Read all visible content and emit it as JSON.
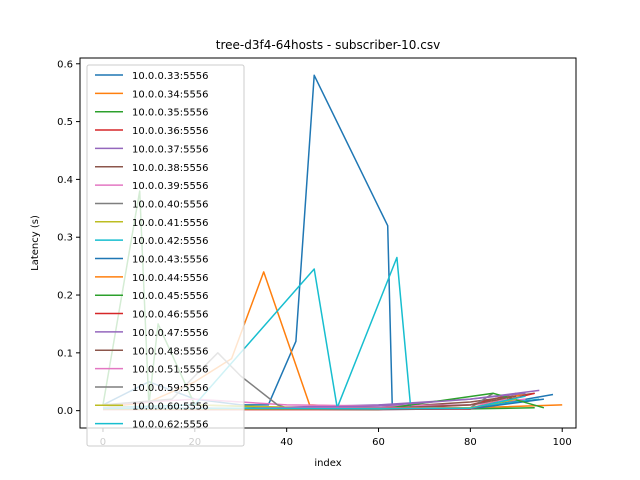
{
  "chart_data": {
    "type": "line",
    "title": "tree-d3f4-64hosts - subscriber-10.csv",
    "xlabel": "index",
    "ylabel": "Latency (s)",
    "xlim": [
      -5,
      103
    ],
    "ylim": [
      -0.03,
      0.61
    ],
    "xticks": [
      0,
      20,
      40,
      60,
      80,
      100
    ],
    "yticks": [
      0.0,
      0.1,
      0.2,
      0.3,
      0.4,
      0.5,
      0.6
    ],
    "xtick_labels": [
      "0",
      "20",
      "40",
      "60",
      "80",
      "100"
    ],
    "ytick_labels": [
      "0.0",
      "0.1",
      "0.2",
      "0.3",
      "0.4",
      "0.5",
      "0.6"
    ],
    "legend_position": "upper-left",
    "series": [
      {
        "name": "10.0.0.33:5556",
        "color": "#1f77b4",
        "x": [
          0,
          10,
          20,
          30,
          36,
          42,
          46,
          62,
          63,
          80,
          98
        ],
        "y": [
          0.01,
          0.05,
          0.02,
          0.01,
          0.01,
          0.12,
          0.58,
          0.32,
          0.005,
          0.003,
          0.028
        ]
      },
      {
        "name": "10.0.0.34:5556",
        "color": "#ff7f0e",
        "x": [
          0,
          5,
          10,
          20,
          28,
          35,
          45,
          60,
          80,
          100
        ],
        "y": [
          0.005,
          0.01,
          0.015,
          0.05,
          0.09,
          0.24,
          0.01,
          0.005,
          0.005,
          0.01
        ]
      },
      {
        "name": "10.0.0.35:5556",
        "color": "#2ca02c",
        "x": [
          0,
          8,
          10,
          12,
          20,
          40,
          80,
          94
        ],
        "y": [
          0.01,
          0.38,
          0.01,
          0.15,
          0.01,
          0.005,
          0.003,
          0.005
        ]
      },
      {
        "name": "10.0.0.36:5556",
        "color": "#d62728",
        "x": [
          0,
          20,
          40,
          60,
          80,
          90
        ],
        "y": [
          0.003,
          0.002,
          0.002,
          0.002,
          0.01,
          0.03
        ]
      },
      {
        "name": "10.0.0.37:5556",
        "color": "#9467bd",
        "x": [
          0,
          30,
          60,
          80,
          95
        ],
        "y": [
          0.004,
          0.004,
          0.01,
          0.02,
          0.035
        ]
      },
      {
        "name": "10.0.0.38:5556",
        "color": "#8c564b",
        "x": [
          0,
          30,
          60,
          80,
          94
        ],
        "y": [
          0.005,
          0.004,
          0.005,
          0.015,
          0.03
        ]
      },
      {
        "name": "10.0.0.39:5556",
        "color": "#e377c2",
        "x": [
          0,
          20,
          40,
          60,
          80,
          92
        ],
        "y": [
          0.01,
          0.02,
          0.01,
          0.008,
          0.01,
          0.02
        ]
      },
      {
        "name": "10.0.0.40:5556",
        "color": "#7f7f7f",
        "x": [
          0,
          15,
          25,
          30,
          38,
          40,
          80,
          85
        ],
        "y": [
          0.01,
          0.02,
          0.1,
          0.06,
          0.01,
          0.005,
          0.005,
          0.03
        ]
      },
      {
        "name": "10.0.0.41:5556",
        "color": "#bcbd22",
        "x": [
          0,
          20,
          50,
          80,
          90
        ],
        "y": [
          0.006,
          0.01,
          0.004,
          0.004,
          0.02
        ]
      },
      {
        "name": "10.0.0.42:5556",
        "color": "#17becf",
        "x": [
          0,
          20,
          46,
          51,
          64,
          67,
          80,
          95
        ],
        "y": [
          0.005,
          0.01,
          0.245,
          0.005,
          0.265,
          0.005,
          0.005,
          0.02
        ]
      },
      {
        "name": "10.0.0.43:5556",
        "color": "#1f77b4",
        "x": [
          0,
          30,
          60,
          80,
          96
        ],
        "y": [
          0.003,
          0.003,
          0.002,
          0.003,
          0.02
        ]
      },
      {
        "name": "10.0.0.44:5556",
        "color": "#ff7f0e",
        "x": [
          0,
          30,
          60,
          80,
          92
        ],
        "y": [
          0.004,
          0.003,
          0.003,
          0.004,
          0.03
        ]
      },
      {
        "name": "10.0.0.45:5556",
        "color": "#2ca02c",
        "x": [
          0,
          30,
          60,
          85,
          96
        ],
        "y": [
          0.003,
          0.003,
          0.002,
          0.03,
          0.005
        ]
      },
      {
        "name": "10.0.0.46:5556",
        "color": "#d62728",
        "x": [
          0,
          30,
          60,
          80,
          94
        ],
        "y": [
          0.002,
          0.002,
          0.002,
          0.003,
          0.03
        ]
      },
      {
        "name": "10.0.0.47:5556",
        "color": "#9467bd",
        "x": [
          0,
          30,
          60,
          80,
          92
        ],
        "y": [
          0.004,
          0.004,
          0.008,
          0.02,
          0.03
        ]
      },
      {
        "name": "10.0.0.48:5556",
        "color": "#8c564b",
        "x": [
          0,
          30,
          60,
          80,
          90
        ],
        "y": [
          0.003,
          0.003,
          0.004,
          0.01,
          0.025
        ]
      },
      {
        "name": "10.0.0.51:5556",
        "color": "#e377c2",
        "x": [
          0,
          30,
          60,
          80,
          88
        ],
        "y": [
          0.005,
          0.004,
          0.004,
          0.005,
          0.02
        ]
      },
      {
        "name": "10.0.0.59:5556",
        "color": "#7f7f7f",
        "x": [
          0,
          30,
          60,
          80,
          86
        ],
        "y": [
          0.004,
          0.003,
          0.003,
          0.004,
          0.015
        ]
      },
      {
        "name": "10.0.0.60:5556",
        "color": "#bcbd22",
        "x": [
          0,
          30,
          60,
          80,
          90
        ],
        "y": [
          0.003,
          0.003,
          0.003,
          0.005,
          0.02
        ]
      },
      {
        "name": "10.0.0.62:5556",
        "color": "#17becf",
        "x": [
          0,
          30,
          60,
          80,
          92
        ],
        "y": [
          0.004,
          0.004,
          0.003,
          0.004,
          0.025
        ]
      }
    ]
  }
}
